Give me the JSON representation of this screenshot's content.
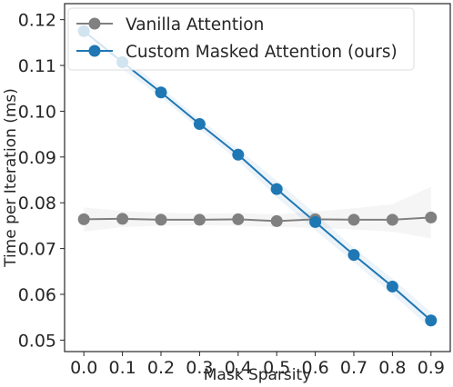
{
  "chart_data": {
    "type": "line",
    "title": "",
    "xlabel": "Mask Sparsity",
    "ylabel": "Time per Iteration (ms)",
    "x": [
      0.0,
      0.1,
      0.2,
      0.3,
      0.4,
      0.5,
      0.6,
      0.7,
      0.8,
      0.9
    ],
    "x_tick_labels": [
      "0.0",
      "0.1",
      "0.2",
      "0.3",
      "0.4",
      "0.5",
      "0.6",
      "0.7",
      "0.8",
      "0.9"
    ],
    "y_ticks": [
      0.05,
      0.06,
      0.07,
      0.08,
      0.09,
      0.1,
      0.11,
      0.12
    ],
    "y_tick_labels": [
      "0.05",
      "0.06",
      "0.07",
      "0.08",
      "0.09",
      "0.10",
      "0.11",
      "0.12"
    ],
    "xlim": [
      -0.05,
      0.95
    ],
    "ylim": [
      0.0475,
      0.1235
    ],
    "grid": false,
    "legend_position": "top-left",
    "series": [
      {
        "name": "Vanilla Attention",
        "color": "#808080",
        "values": [
          0.0764,
          0.0765,
          0.0763,
          0.0763,
          0.0764,
          0.076,
          0.0764,
          0.0763,
          0.0763,
          0.0768
        ],
        "ci_lower": [
          0.0737,
          0.0747,
          0.075,
          0.0751,
          0.075,
          0.0747,
          0.0745,
          0.0742,
          0.0737,
          0.0722
        ],
        "ci_upper": [
          0.079,
          0.0782,
          0.0778,
          0.0776,
          0.0777,
          0.0775,
          0.0781,
          0.0788,
          0.0797,
          0.0835
        ]
      },
      {
        "name": "Custom Masked Attention (ours)",
        "color": "#1f77b4",
        "values": [
          0.1175,
          0.1107,
          0.1041,
          0.0972,
          0.0905,
          0.083,
          0.0758,
          0.0686,
          0.0617,
          0.0543
        ],
        "ci_lower": [
          0.1158,
          0.1092,
          0.103,
          0.0961,
          0.0892,
          0.0812,
          0.074,
          0.067,
          0.06,
          0.0525
        ],
        "ci_upper": [
          0.1192,
          0.1122,
          0.1052,
          0.0983,
          0.0918,
          0.0848,
          0.0776,
          0.0702,
          0.0634,
          0.0561
        ]
      }
    ]
  }
}
